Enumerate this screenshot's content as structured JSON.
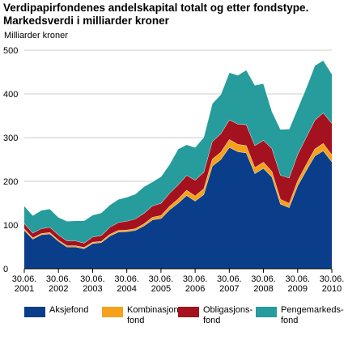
{
  "title_line1": "Verdipapirfondenes andelskapital totalt og etter fondstype.",
  "title_line2": "Markedsverdi i milliarder kroner",
  "chart_data": {
    "type": "area",
    "stacked": true,
    "ylabel": "Milliarder kroner",
    "ylim": [
      0,
      500
    ],
    "yticks": [
      0,
      100,
      200,
      300,
      400,
      500
    ],
    "x_tick_labels": [
      [
        "30.06.",
        "2001"
      ],
      [
        "30.06.",
        "2002"
      ],
      [
        "30.06.",
        "2003"
      ],
      [
        "30.06.",
        "2004"
      ],
      [
        "30.06.",
        "2005"
      ],
      [
        "30.06.",
        "2006"
      ],
      [
        "30.06.",
        "2007"
      ],
      [
        "30.06.",
        "2008"
      ],
      [
        "30.06.",
        "2009"
      ],
      [
        "30.06.",
        "2010"
      ]
    ],
    "x": [
      "2001Q2",
      "2001Q3",
      "2001Q4",
      "2002Q1",
      "2002Q2",
      "2002Q3",
      "2002Q4",
      "2003Q1",
      "2003Q2",
      "2003Q3",
      "2003Q4",
      "2004Q1",
      "2004Q2",
      "2004Q3",
      "2004Q4",
      "2005Q1",
      "2005Q2",
      "2005Q3",
      "2005Q4",
      "2006Q1",
      "2006Q2",
      "2006Q3",
      "2006Q4",
      "2007Q1",
      "2007Q2",
      "2007Q3",
      "2007Q4",
      "2008Q1",
      "2008Q2",
      "2008Q3",
      "2008Q4",
      "2009Q1",
      "2009Q2",
      "2009Q3",
      "2009Q4",
      "2010Q1",
      "2010Q2"
    ],
    "series": [
      {
        "name": "Aksjefond",
        "color": "#0a3d8a",
        "values": [
          88,
          68,
          78,
          80,
          63,
          50,
          50,
          46,
          58,
          60,
          75,
          84,
          85,
          88,
          98,
          112,
          115,
          135,
          150,
          168,
          155,
          170,
          235,
          250,
          278,
          268,
          265,
          218,
          230,
          210,
          148,
          140,
          190,
          225,
          258,
          270,
          245
        ]
      },
      {
        "name": "Kombinasjonsfond",
        "color": "#f5a11b",
        "values": [
          4,
          3,
          3,
          3,
          3,
          3,
          3,
          3,
          3,
          3,
          4,
          4,
          4,
          4,
          5,
          6,
          7,
          8,
          10,
          12,
          12,
          13,
          16,
          17,
          18,
          17,
          17,
          14,
          14,
          13,
          11,
          10,
          12,
          14,
          16,
          17,
          16
        ]
      },
      {
        "name": "Obligasjonsfond",
        "color": "#a5121f",
        "values": [
          12,
          11,
          11,
          12,
          12,
          11,
          11,
          10,
          12,
          13,
          16,
          18,
          20,
          22,
          24,
          26,
          28,
          30,
          32,
          34,
          36,
          38,
          40,
          42,
          45,
          46,
          48,
          50,
          50,
          52,
          55,
          58,
          60,
          62,
          66,
          70,
          72
        ]
      },
      {
        "name": "Pengemarkedsfond",
        "color": "#269c9c",
        "values": [
          40,
          40,
          42,
          42,
          40,
          45,
          46,
          51,
          50,
          52,
          51,
          53,
          55,
          57,
          61,
          55,
          61,
          66,
          82,
          70,
          75,
          80,
          87,
          90,
          108,
          112,
          125,
          138,
          130,
          85,
          105,
          112,
          105,
          113,
          125,
          120,
          113
        ]
      }
    ]
  }
}
